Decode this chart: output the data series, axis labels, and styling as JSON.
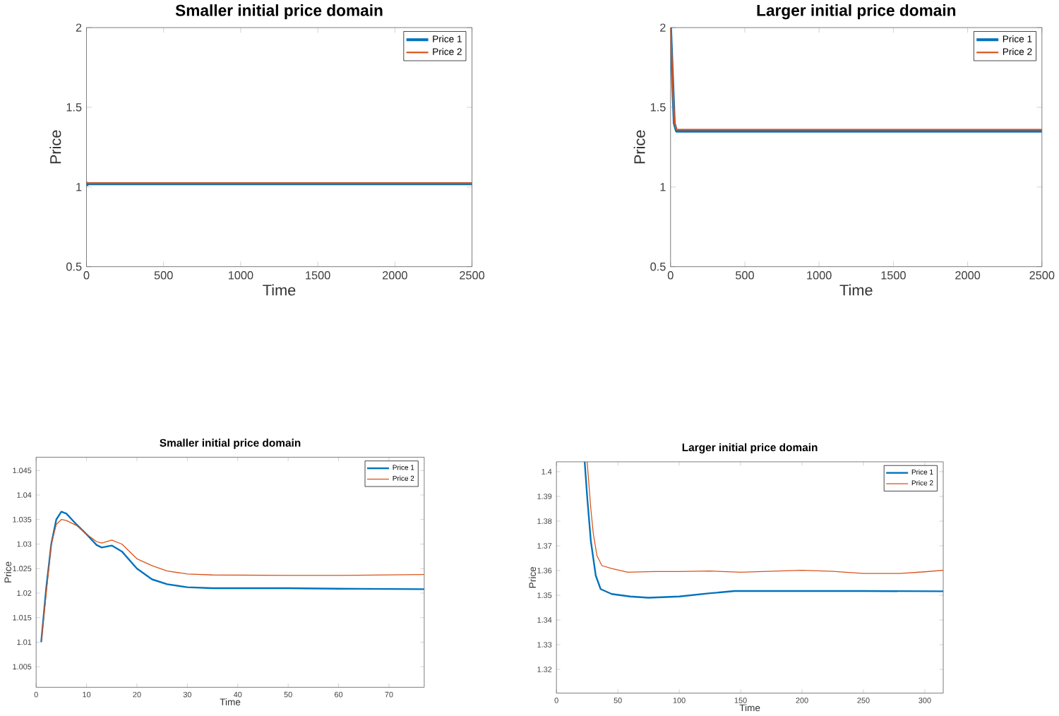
{
  "chart_data": [
    {
      "type": "line",
      "title": "Smaller initial price domain",
      "xlabel": "Time",
      "ylabel": "Price",
      "xlim": [
        0,
        2500
      ],
      "ylim": [
        0.5,
        2
      ],
      "xticks": [
        0,
        500,
        1000,
        1500,
        2000,
        2500
      ],
      "yticks": [
        0.5,
        1,
        1.5,
        2
      ],
      "legend": "top right",
      "x": [
        0,
        10,
        2500
      ],
      "series": [
        {
          "name": "Price 1",
          "color": "#0072bd",
          "values": [
            1.01,
            1.02,
            1.02
          ]
        },
        {
          "name": "Price 2",
          "color": "#d95319",
          "values": [
            1.03,
            1.024,
            1.024
          ]
        }
      ]
    },
    {
      "type": "line",
      "title": "Larger initial price domain",
      "xlabel": "Time",
      "ylabel": "Price",
      "xlim": [
        0,
        2500
      ],
      "ylim": [
        0.5,
        2
      ],
      "xticks": [
        0,
        500,
        1000,
        1500,
        2000,
        2500
      ],
      "yticks": [
        0.5,
        1,
        1.5,
        2
      ],
      "legend": "top right",
      "x": [
        0,
        25,
        40,
        60,
        2500
      ],
      "series": [
        {
          "name": "Price 1",
          "color": "#0072bd",
          "values": [
            2,
            1.4,
            1.35,
            1.35,
            1.35
          ]
        },
        {
          "name": "Price 2",
          "color": "#d95319",
          "values": [
            2,
            1.41,
            1.36,
            1.36,
            1.36
          ]
        }
      ]
    },
    {
      "type": "line",
      "title": "Smaller initial price domain",
      "xlabel": "Time",
      "ylabel": "Price",
      "xlim": [
        0,
        77
      ],
      "ylim": [
        1.0008,
        1.0477
      ],
      "xticks": [
        0,
        10,
        20,
        30,
        40,
        50,
        60,
        70
      ],
      "yticks": [
        1.005,
        1.01,
        1.015,
        1.02,
        1.025,
        1.03,
        1.035,
        1.04,
        1.045
      ],
      "legend": "top right",
      "x": [
        1,
        2,
        3,
        4,
        5,
        6,
        8,
        10,
        12,
        13,
        15,
        17,
        20,
        23,
        26,
        30,
        35,
        50,
        60,
        77
      ],
      "series": [
        {
          "name": "Price 1",
          "color": "#0072bd",
          "values": [
            1.01,
            1.021,
            1.03,
            1.035,
            1.0366,
            1.0362,
            1.034,
            1.032,
            1.0298,
            1.0293,
            1.0297,
            1.0285,
            1.025,
            1.0228,
            1.0218,
            1.0212,
            1.021,
            1.021,
            1.0209,
            1.0208
          ]
        },
        {
          "name": "Price 2",
          "color": "#d95319",
          "values": [
            1.01,
            1.02,
            1.03,
            1.034,
            1.035,
            1.0348,
            1.0338,
            1.032,
            1.0305,
            1.0302,
            1.0308,
            1.03,
            1.027,
            1.0256,
            1.0245,
            1.0239,
            1.0237,
            1.0236,
            1.0236,
            1.0238
          ]
        }
      ]
    },
    {
      "type": "line",
      "title": "Larger initial price domain",
      "xlabel": "Time",
      "ylabel": "Price",
      "xlim": [
        0,
        315
      ],
      "ylim": [
        1.3104,
        1.404
      ],
      "xticks": [
        0,
        50,
        100,
        150,
        200,
        250,
        300
      ],
      "yticks": [
        1.32,
        1.33,
        1.34,
        1.35,
        1.36,
        1.37,
        1.38,
        1.39,
        1.4
      ],
      "legend": "top right",
      "series": [
        {
          "name": "Price 1",
          "color": "#0072bd",
          "x": [
            23,
            25,
            28,
            32,
            36,
            45,
            60,
            75,
            100,
            125,
            145,
            200,
            250,
            315
          ],
          "values": [
            1.404,
            1.39,
            1.372,
            1.358,
            1.3525,
            1.3505,
            1.3495,
            1.349,
            1.3495,
            1.3508,
            1.3517,
            1.3517,
            1.3517,
            1.3516
          ]
        },
        {
          "name": "Price 2",
          "color": "#d95319",
          "x": [
            25,
            28,
            30,
            33,
            37,
            45,
            58,
            80,
            100,
            125,
            150,
            200,
            225,
            250,
            280,
            300,
            315
          ],
          "values": [
            1.404,
            1.385,
            1.375,
            1.366,
            1.362,
            1.3608,
            1.3593,
            1.3596,
            1.3596,
            1.3598,
            1.3593,
            1.3601,
            1.3597,
            1.3588,
            1.3588,
            1.3595,
            1.3601
          ]
        }
      ]
    }
  ]
}
